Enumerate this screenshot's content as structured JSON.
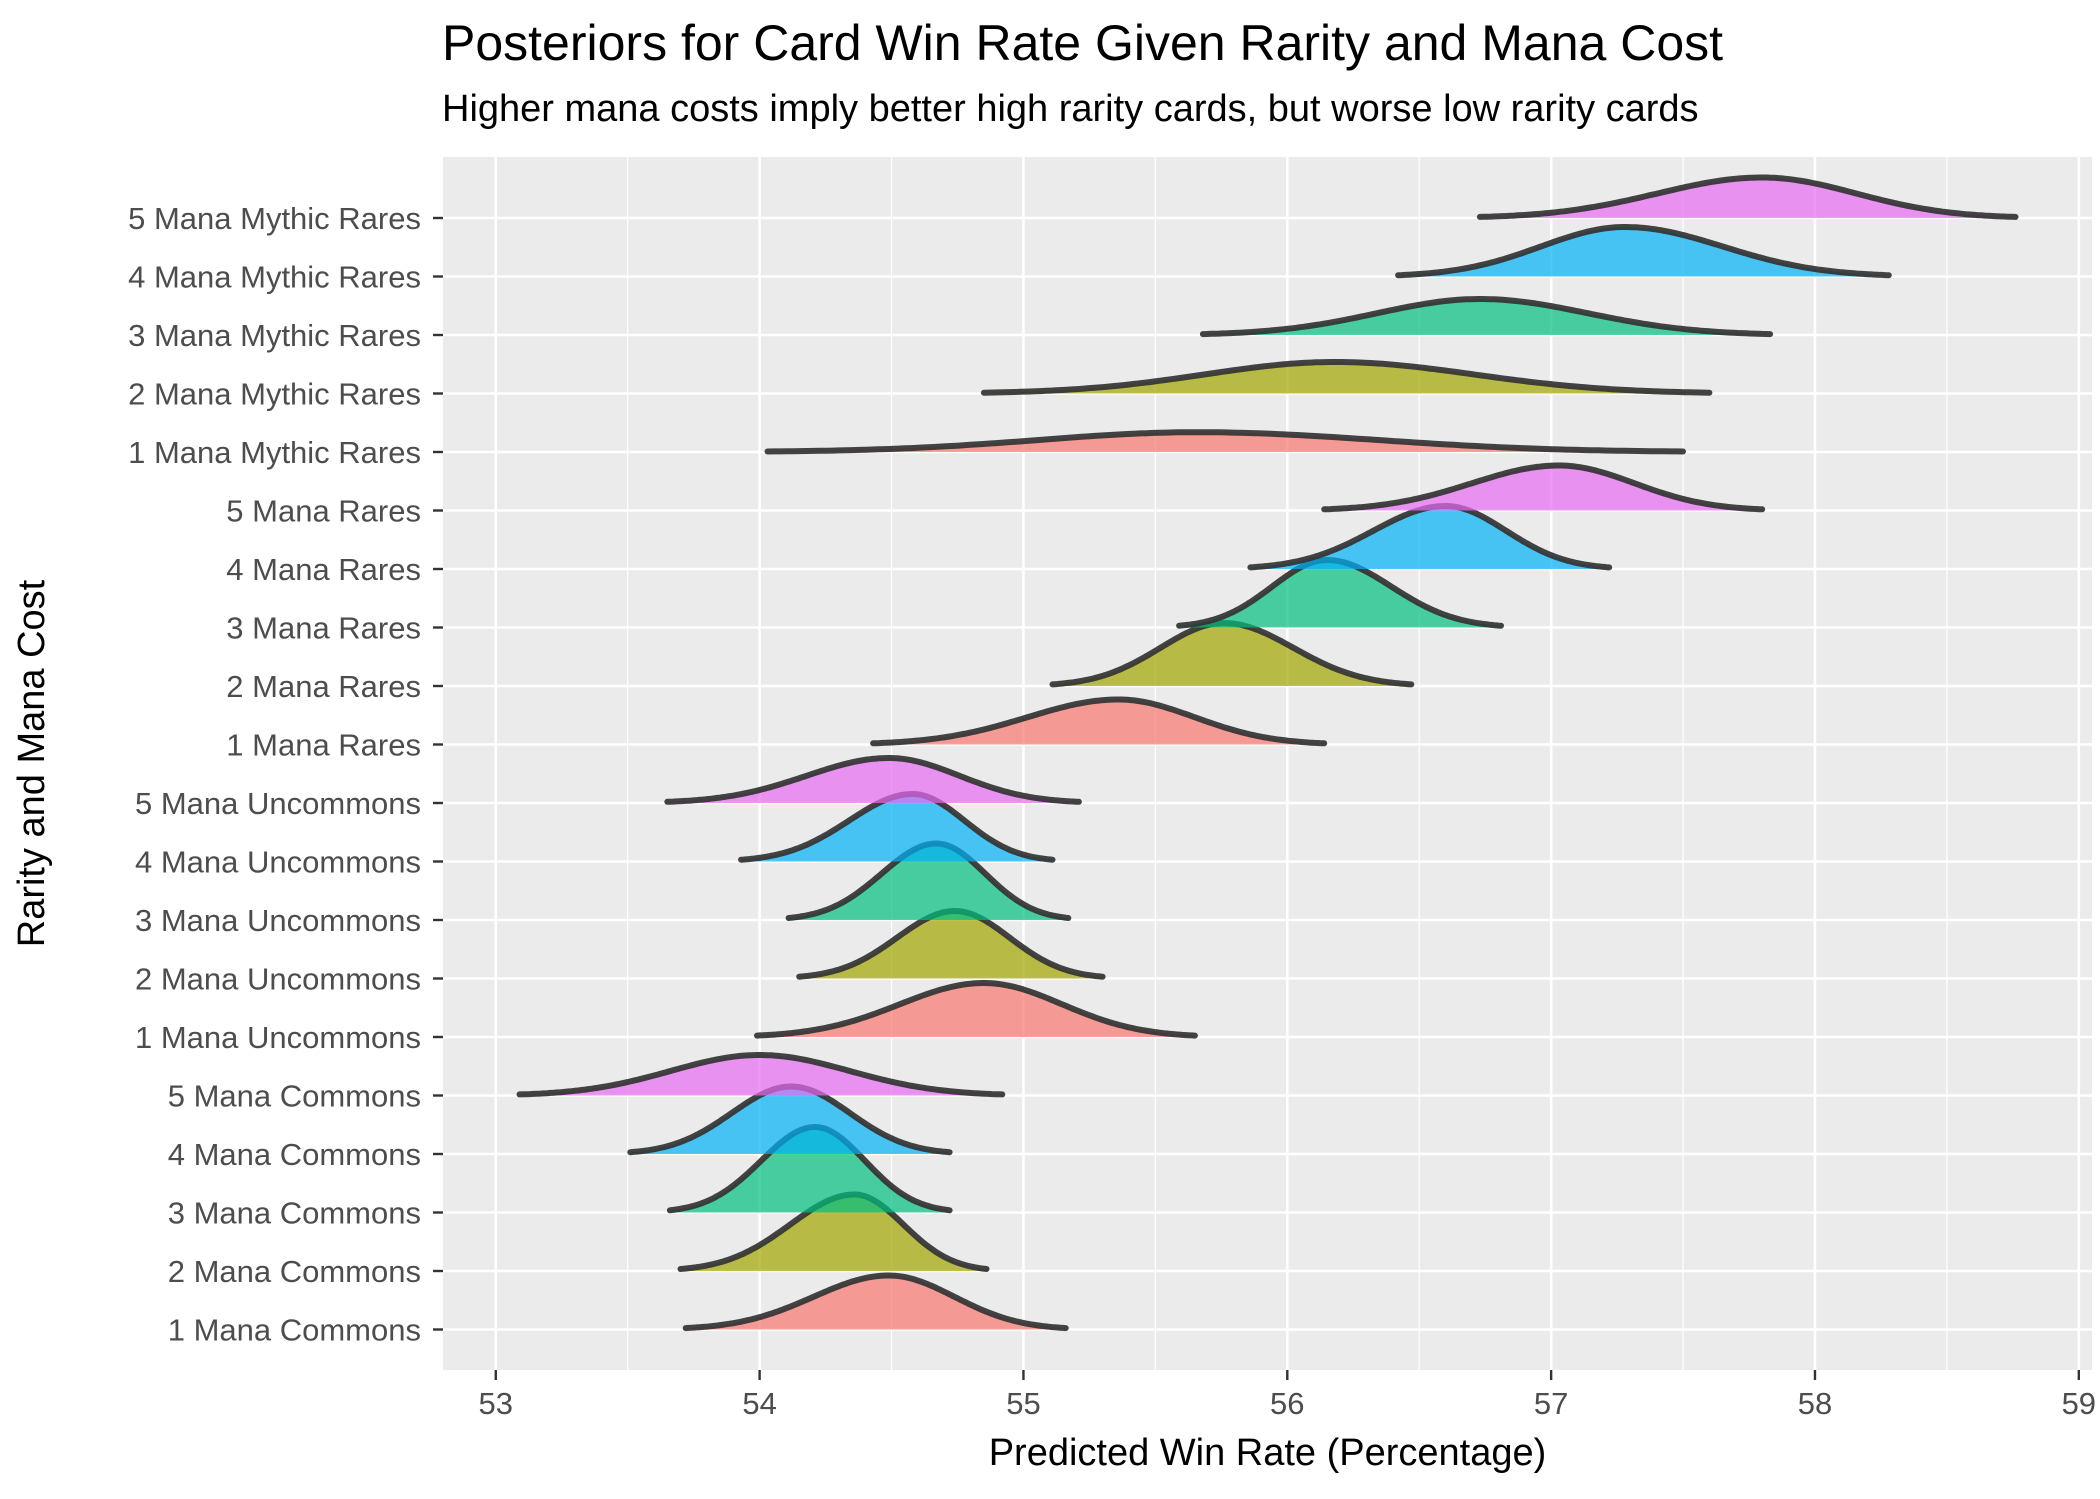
{
  "chart_data": {
    "type": "ridgeline",
    "title": "Posteriors for Card Win Rate Given Rarity and Mana Cost",
    "subtitle": "Higher mana costs imply better high rarity cards, but worse low rarity cards",
    "xlabel": "Predicted Win Rate (Percentage)",
    "ylabel": "Rarity and Mana Cost",
    "xlim": [
      52.8,
      59.05
    ],
    "x_ticks": [
      53,
      54,
      55,
      56,
      57,
      58,
      59
    ],
    "grid": true,
    "legend": "none",
    "colors": {
      "1": "#F8766D",
      "2": "#A3A500",
      "3": "#00BF7D",
      "4": "#00B0F6",
      "5": "#E76BF3",
      "outline": "#333333",
      "panel": "#EBEBEB",
      "grid": "#FFFFFF"
    },
    "categories": [
      {
        "label": "1 Mana Commons",
        "mana": 1,
        "min": 53.72,
        "mode": 54.49,
        "max": 55.16,
        "peak": 0.6
      },
      {
        "label": "2 Mana Commons",
        "mana": 2,
        "min": 53.7,
        "mode": 54.36,
        "max": 54.86,
        "peak": 0.85
      },
      {
        "label": "3 Mana Commons",
        "mana": 3,
        "min": 53.66,
        "mode": 54.21,
        "max": 54.72,
        "peak": 0.95
      },
      {
        "label": "4 Mana Commons",
        "mana": 4,
        "min": 53.51,
        "mode": 54.12,
        "max": 54.72,
        "peak": 0.75
      },
      {
        "label": "5 Mana Commons",
        "mana": 5,
        "min": 53.09,
        "mode": 54.0,
        "max": 54.92,
        "peak": 0.45
      },
      {
        "label": "1 Mana Uncommons",
        "mana": 1,
        "min": 53.99,
        "mode": 54.85,
        "max": 55.65,
        "peak": 0.6
      },
      {
        "label": "2 Mana Uncommons",
        "mana": 2,
        "min": 54.15,
        "mode": 54.74,
        "max": 55.3,
        "peak": 0.75
      },
      {
        "label": "3 Mana Uncommons",
        "mana": 3,
        "min": 54.11,
        "mode": 54.67,
        "max": 55.17,
        "peak": 0.85
      },
      {
        "label": "4 Mana Uncommons",
        "mana": 4,
        "min": 53.93,
        "mode": 54.58,
        "max": 55.11,
        "peak": 0.75
      },
      {
        "label": "5 Mana Uncommons",
        "mana": 5,
        "min": 53.65,
        "mode": 54.49,
        "max": 55.21,
        "peak": 0.5
      },
      {
        "label": "1 Mana Rares",
        "mana": 1,
        "min": 54.43,
        "mode": 55.36,
        "max": 56.14,
        "peak": 0.5
      },
      {
        "label": "2 Mana Rares",
        "mana": 2,
        "min": 55.11,
        "mode": 55.76,
        "max": 56.47,
        "peak": 0.7
      },
      {
        "label": "3 Mana Rares",
        "mana": 3,
        "min": 55.59,
        "mode": 56.15,
        "max": 56.81,
        "peak": 0.75
      },
      {
        "label": "4 Mana Rares",
        "mana": 4,
        "min": 55.86,
        "mode": 56.6,
        "max": 57.22,
        "peak": 0.7
      },
      {
        "label": "5 Mana Rares",
        "mana": 5,
        "min": 56.14,
        "mode": 57.03,
        "max": 57.8,
        "peak": 0.5
      },
      {
        "label": "1 Mana Mythic Rares",
        "mana": 1,
        "min": 54.03,
        "mode": 55.66,
        "max": 57.5,
        "peak": 0.22
      },
      {
        "label": "2 Mana Mythic Rares",
        "mana": 2,
        "min": 54.85,
        "mode": 56.18,
        "max": 57.6,
        "peak": 0.35
      },
      {
        "label": "3 Mana Mythic Rares",
        "mana": 3,
        "min": 55.68,
        "mode": 56.73,
        "max": 57.83,
        "peak": 0.4
      },
      {
        "label": "4 Mana Mythic Rares",
        "mana": 4,
        "min": 56.42,
        "mode": 57.28,
        "max": 58.28,
        "peak": 0.55
      },
      {
        "label": "5 Mana Mythic Rares",
        "mana": 5,
        "min": 56.73,
        "mode": 57.8,
        "max": 58.76,
        "peak": 0.45
      }
    ]
  }
}
